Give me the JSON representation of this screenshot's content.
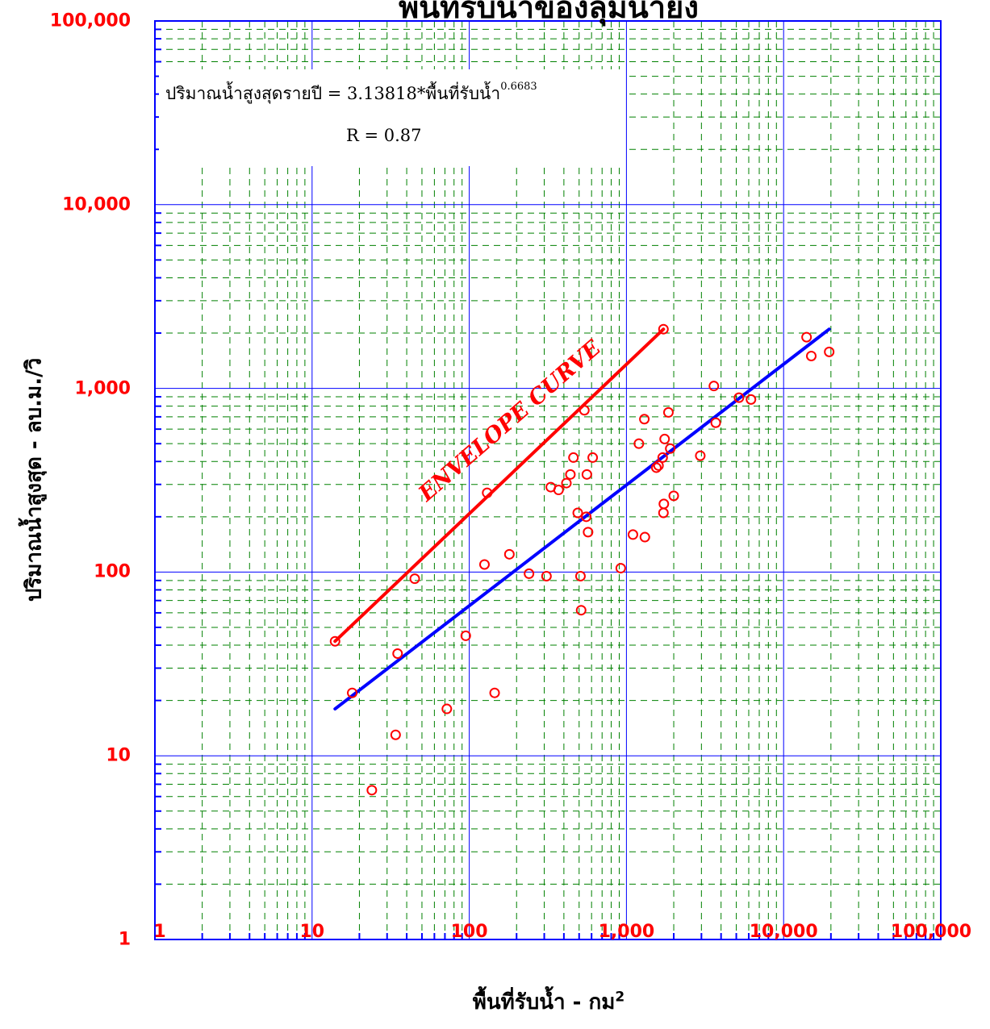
{
  "chart_data": {
    "type": "scatter",
    "title": "พื้นที่รับน้ำของลุ่มน้ำยัง",
    "xlabel": "พื้นที่รับน้ำ - กม",
    "xlabel_sup": "2",
    "ylabel": "ปริมาณน้ำสูงสุด - ลบ.ม./วิ",
    "x_scale": "log",
    "y_scale": "log",
    "xlim": [
      1,
      100000
    ],
    "ylim": [
      1,
      100000
    ],
    "x_ticks": [
      "1",
      "10",
      "100",
      "1,000",
      "10,000",
      "100,000"
    ],
    "y_ticks": [
      "1",
      "10",
      "100",
      "1,000",
      "10,000",
      "100,000"
    ],
    "grid": true,
    "equation": {
      "text": "ปริมาณน้ำสูงสุดรายปี = 3.13818*พื้นที่รับน้ำ",
      "exponent": "0.6683",
      "r_text": "R = 0.87"
    },
    "envelope_label": "ENVELOPE CURVE",
    "colors": {
      "points": "#ff0000",
      "envelope": "#ff0000",
      "regression": "#0000ff",
      "major_grid": "#0000ff",
      "minor_grid": "#008000",
      "axis": "#0000ff",
      "tick_labels": "#ff0000"
    },
    "points": [
      [
        14,
        42
      ],
      [
        18,
        22
      ],
      [
        24,
        6.5
      ],
      [
        34,
        13
      ],
      [
        35,
        36
      ],
      [
        45,
        92
      ],
      [
        72,
        18
      ],
      [
        95,
        45
      ],
      [
        125,
        110
      ],
      [
        130,
        270
      ],
      [
        145,
        22
      ],
      [
        180,
        125
      ],
      [
        240,
        98
      ],
      [
        310,
        95
      ],
      [
        330,
        290
      ],
      [
        370,
        280
      ],
      [
        415,
        305
      ],
      [
        440,
        340
      ],
      [
        460,
        420
      ],
      [
        490,
        210
      ],
      [
        510,
        95
      ],
      [
        515,
        62
      ],
      [
        540,
        760
      ],
      [
        555,
        200
      ],
      [
        560,
        340
      ],
      [
        570,
        165
      ],
      [
        610,
        420
      ],
      [
        920,
        105
      ],
      [
        1100,
        160
      ],
      [
        1200,
        500
      ],
      [
        1300,
        680
      ],
      [
        1310,
        155
      ],
      [
        1550,
        370
      ],
      [
        1600,
        380
      ],
      [
        1700,
        420
      ],
      [
        1720,
        210
      ],
      [
        1720,
        2100
      ],
      [
        1730,
        235
      ],
      [
        1750,
        530
      ],
      [
        1850,
        740
      ],
      [
        1900,
        470
      ],
      [
        2000,
        260
      ],
      [
        2950,
        430
      ],
      [
        3600,
        1030
      ],
      [
        3700,
        650
      ],
      [
        5200,
        890
      ],
      [
        6200,
        870
      ],
      [
        14000,
        1900
      ],
      [
        15000,
        1500
      ],
      [
        19500,
        1580
      ]
    ],
    "series": [
      {
        "name": "",
        "type": "line",
        "x": [
          14,
          1720
        ],
        "y": [
          42,
          2100
        ]
      },
      {
        "name": "",
        "type": "line",
        "x": [
          14,
          19500
        ],
        "y": [
          18,
          2100
        ]
      }
    ]
  }
}
